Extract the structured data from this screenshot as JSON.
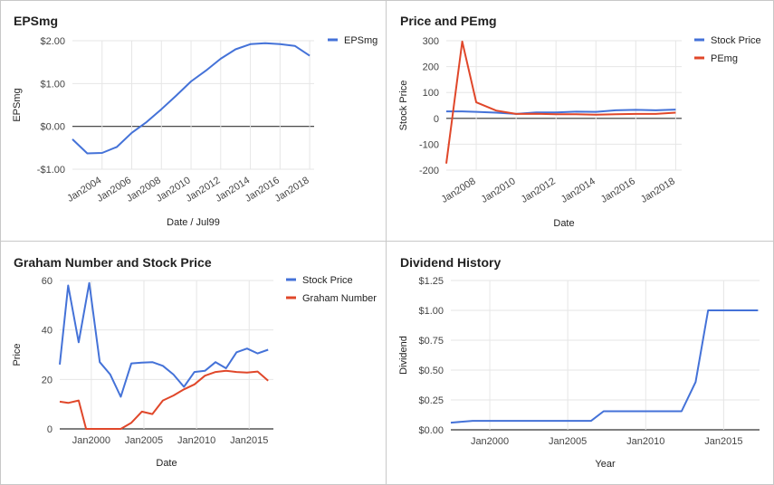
{
  "colors": {
    "blue": "#4472d8",
    "red": "#e0472a",
    "grid": "#e6e6e6",
    "baseline": "#333333",
    "text": "#222222",
    "axis": "#444444"
  },
  "chart_data": [
    {
      "id": "eps",
      "type": "line",
      "title": "EPSmg",
      "xlabel": "Date / Jul99",
      "ylabel": "EPSmg",
      "xlim": [
        2002.0,
        2018.3
      ],
      "ylim": [
        -1.0,
        2.0
      ],
      "yticks": [
        -1,
        0,
        1,
        2
      ],
      "ytick_labels": [
        "-$1.00",
        "$0.00",
        "$1.00",
        "$2.00"
      ],
      "xticks": [
        2004,
        2006,
        2008,
        2010,
        2012,
        2014,
        2016,
        2018
      ],
      "xtick_labels": [
        "Jan2004",
        "Jan2006",
        "Jan2008",
        "Jan2010",
        "Jan2012",
        "Jan2014",
        "Jan2016",
        "Jan2018"
      ],
      "zero_line": true,
      "legend_position": "top-right",
      "series": [
        {
          "name": "EPSmg",
          "color": "#4472d8",
          "x": [
            2002.0,
            2003.0,
            2004.0,
            2005.0,
            2006.0,
            2007.0,
            2008.0,
            2009.0,
            2010.0,
            2011.0,
            2012.0,
            2013.0,
            2014.0,
            2015.0,
            2016.0,
            2017.0,
            2018.0
          ],
          "y": [
            -0.3,
            -0.63,
            -0.62,
            -0.48,
            -0.15,
            0.1,
            0.4,
            0.72,
            1.05,
            1.3,
            1.58,
            1.8,
            1.92,
            1.94,
            1.92,
            1.88,
            1.65
          ]
        }
      ]
    },
    {
      "id": "pe",
      "type": "line",
      "title": "Price and PEmg",
      "xlabel": "Date",
      "ylabel": "Stock Price",
      "xlim": [
        2006.5,
        2018.3
      ],
      "ylim": [
        -200,
        300
      ],
      "yticks": [
        -200,
        -100,
        0,
        100,
        200,
        300
      ],
      "ytick_labels": [
        "-200",
        "-100",
        "0",
        "100",
        "200",
        "300"
      ],
      "xticks": [
        2008,
        2010,
        2012,
        2014,
        2016,
        2018
      ],
      "xtick_labels": [
        "Jan2008",
        "Jan2010",
        "Jan2012",
        "Jan2014",
        "Jan2016",
        "Jan2018"
      ],
      "zero_line": true,
      "legend_position": "top-right",
      "series": [
        {
          "name": "Stock Price",
          "color": "#4472d8",
          "x": [
            2006.5,
            2007.3,
            2008.0,
            2009.0,
            2010.0,
            2011.0,
            2012.0,
            2013.0,
            2014.0,
            2015.0,
            2016.0,
            2017.0,
            2018.0
          ],
          "y": [
            27,
            27,
            25,
            22,
            17,
            23,
            23,
            26,
            25,
            31,
            33,
            31,
            34
          ]
        },
        {
          "name": "PEmg",
          "color": "#e0472a",
          "x": [
            2006.5,
            2007.3,
            2008.0,
            2009.0,
            2010.0,
            2011.0,
            2012.0,
            2013.0,
            2014.0,
            2015.0,
            2016.0,
            2017.0,
            2018.0
          ],
          "y": [
            -175,
            297,
            62,
            30,
            17,
            18,
            16,
            16,
            14,
            16,
            17,
            17,
            22
          ]
        }
      ]
    },
    {
      "id": "graham",
      "type": "line",
      "title": "Graham Number and Stock Price",
      "xlabel": "Date",
      "ylabel": "Price",
      "xlim": [
        1997.0,
        2017.3
      ],
      "ylim": [
        0,
        60
      ],
      "yticks": [
        0,
        20,
        40,
        60
      ],
      "ytick_labels": [
        "0",
        "20",
        "40",
        "60"
      ],
      "xticks": [
        2000,
        2005,
        2010,
        2015
      ],
      "xtick_labels": [
        "Jan2000",
        "Jan2005",
        "Jan2010",
        "Jan2015"
      ],
      "zero_line": true,
      "legend_position": "top-right",
      "series": [
        {
          "name": "Stock Price",
          "color": "#4472d8",
          "x": [
            1997.0,
            1997.8,
            1998.8,
            1999.8,
            2000.8,
            2001.8,
            2002.8,
            2003.8,
            2004.8,
            2005.8,
            2006.8,
            2007.8,
            2008.8,
            2009.8,
            2010.8,
            2011.8,
            2012.8,
            2013.8,
            2014.8,
            2015.8,
            2016.8
          ],
          "y": [
            26,
            58,
            35,
            59,
            27,
            22,
            13,
            26.5,
            26.8,
            27,
            25.5,
            22,
            17,
            23,
            23.5,
            27,
            24.5,
            31,
            32.5,
            30.5,
            32
          ]
        },
        {
          "name": "Graham Number",
          "color": "#e0472a",
          "x": [
            1997.0,
            1997.8,
            1998.8,
            1999.5,
            2000.0,
            2001.8,
            2002.8,
            2003.8,
            2004.8,
            2005.8,
            2006.8,
            2007.8,
            2008.8,
            2009.8,
            2010.8,
            2011.8,
            2012.8,
            2013.8,
            2014.8,
            2015.8,
            2016.8
          ],
          "y": [
            11,
            10.5,
            11.5,
            0,
            0,
            0,
            0,
            2.5,
            7,
            6,
            11.5,
            13.5,
            16,
            18,
            21.5,
            23,
            23.5,
            23,
            22.8,
            23.2,
            19.5
          ]
        }
      ]
    },
    {
      "id": "dividend",
      "type": "line",
      "title": "Dividend History",
      "xlabel": "Year",
      "ylabel": "Dividend",
      "xlim": [
        1997.5,
        2017.3
      ],
      "ylim": [
        0,
        1.25
      ],
      "yticks": [
        0,
        0.25,
        0.5,
        0.75,
        1.0,
        1.25
      ],
      "ytick_labels": [
        "$0.00",
        "$0.25",
        "$0.50",
        "$0.75",
        "$1.00",
        "$1.25"
      ],
      "xticks": [
        2000,
        2005,
        2010,
        2015
      ],
      "xtick_labels": [
        "Jan2000",
        "Jan2005",
        "Jan2010",
        "Jan2015"
      ],
      "zero_line": true,
      "legend_position": "none",
      "series": [
        {
          "name": "",
          "color": "#4472d8",
          "x": [
            1997.5,
            1998.9,
            2006.5,
            2007.3,
            2012.3,
            2013.2,
            2014.0,
            2017.2
          ],
          "y": [
            0.06,
            0.075,
            0.075,
            0.155,
            0.155,
            0.4,
            1.0,
            1.0
          ]
        }
      ]
    }
  ]
}
